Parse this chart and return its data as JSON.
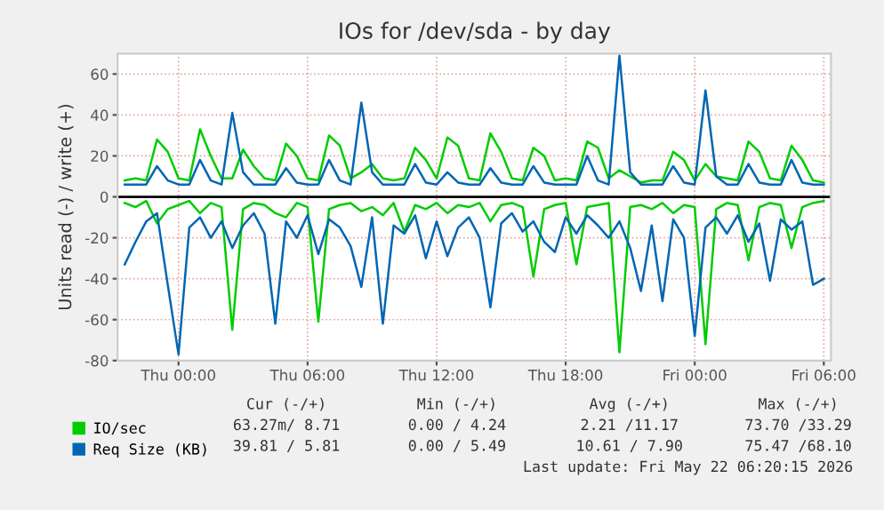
{
  "chart_data": {
    "type": "line",
    "title": "IOs for /dev/sda - by day",
    "ylabel": "Units read (-) / write (+)",
    "x": [
      "2026-05-20T21:30",
      "2026-05-20T22:00",
      "2026-05-20T22:30",
      "2026-05-20T23:00",
      "2026-05-20T23:30",
      "2026-05-21T00:00",
      "2026-05-21T00:30",
      "2026-05-21T01:00",
      "2026-05-21T01:30",
      "2026-05-21T02:00",
      "2026-05-21T02:30",
      "2026-05-21T03:00",
      "2026-05-21T03:30",
      "2026-05-21T04:00",
      "2026-05-21T04:30",
      "2026-05-21T05:00",
      "2026-05-21T05:30",
      "2026-05-21T06:00",
      "2026-05-21T06:30",
      "2026-05-21T07:00",
      "2026-05-21T07:30",
      "2026-05-21T08:00",
      "2026-05-21T08:30",
      "2026-05-21T09:00",
      "2026-05-21T09:30",
      "2026-05-21T10:00",
      "2026-05-21T10:30",
      "2026-05-21T11:00",
      "2026-05-21T11:30",
      "2026-05-21T12:00",
      "2026-05-21T12:30",
      "2026-05-21T13:00",
      "2026-05-21T13:30",
      "2026-05-21T14:00",
      "2026-05-21T14:30",
      "2026-05-21T15:00",
      "2026-05-21T15:30",
      "2026-05-21T16:00",
      "2026-05-21T16:30",
      "2026-05-21T17:00",
      "2026-05-21T17:30",
      "2026-05-21T18:00",
      "2026-05-21T18:30",
      "2026-05-21T19:00",
      "2026-05-21T19:30",
      "2026-05-21T20:00",
      "2026-05-21T20:30",
      "2026-05-21T21:00",
      "2026-05-21T21:30",
      "2026-05-21T22:00",
      "2026-05-21T22:30",
      "2026-05-21T23:00",
      "2026-05-21T23:30",
      "2026-05-22T00:00",
      "2026-05-22T00:30",
      "2026-05-22T01:00",
      "2026-05-22T01:30",
      "2026-05-22T02:00",
      "2026-05-22T02:30",
      "2026-05-22T03:00",
      "2026-05-22T03:30",
      "2026-05-22T04:00",
      "2026-05-22T04:30",
      "2026-05-22T05:00",
      "2026-05-22T05:30",
      "2026-05-22T06:00"
    ],
    "series": [
      {
        "name": "IO/sec",
        "color": "#00cc00",
        "values": [
          8,
          9,
          8,
          28,
          22,
          9,
          8,
          33,
          20,
          9,
          9,
          23,
          15,
          9,
          8,
          26,
          20,
          9,
          8,
          30,
          25,
          9,
          12,
          16,
          9,
          8,
          9,
          24,
          18,
          9,
          29,
          25,
          9,
          8,
          31,
          22,
          9,
          8,
          24,
          20,
          8,
          9,
          8,
          27,
          24,
          9,
          13,
          10,
          7,
          8,
          8,
          22,
          18,
          8,
          16,
          10,
          9,
          8,
          27,
          22,
          9,
          8,
          25,
          18,
          8,
          7
        ]
      },
      {
        "color": "#00cc00",
        "values": [
          -3,
          -5,
          -2,
          -13,
          -6,
          -4,
          -2,
          -8,
          -3,
          -5,
          -65,
          -6,
          -3,
          -4,
          -8,
          -10,
          -3,
          -5,
          -61,
          -6,
          -4,
          -3,
          -7,
          -5,
          -9,
          -3,
          -17,
          -4,
          -6,
          -3,
          -8,
          -4,
          -5,
          -3,
          -12,
          -4,
          -3,
          -5,
          -39,
          -6,
          -4,
          -3,
          -33,
          -5,
          -4,
          -3,
          -76,
          -5,
          -4,
          -6,
          -3,
          -8,
          -4,
          -5,
          -72,
          -6,
          -3,
          -4,
          -31,
          -5,
          -3,
          -4,
          -25,
          -5,
          -3,
          -2
        ]
      },
      {
        "name": "Req Size (KB)",
        "color": "#0066b3",
        "values": [
          6,
          6,
          6,
          15,
          8,
          6,
          6,
          18,
          8,
          6,
          41,
          12,
          6,
          6,
          6,
          14,
          7,
          6,
          6,
          18,
          8,
          6,
          46,
          12,
          6,
          6,
          6,
          16,
          7,
          6,
          12,
          7,
          6,
          6,
          14,
          7,
          6,
          6,
          15,
          7,
          6,
          6,
          6,
          20,
          8,
          6,
          69,
          12,
          6,
          6,
          6,
          15,
          7,
          6,
          52,
          10,
          6,
          6,
          16,
          7,
          6,
          6,
          18,
          7,
          6,
          6
        ]
      },
      {
        "color": "#0066b3",
        "values": [
          -33,
          -22,
          -12,
          -8,
          -43,
          -77,
          -15,
          -10,
          -20,
          -12,
          -25,
          -14,
          -8,
          -18,
          -62,
          -12,
          -20,
          -9,
          -28,
          -11,
          -15,
          -24,
          -44,
          -10,
          -62,
          -14,
          -18,
          -9,
          -30,
          -12,
          -29,
          -15,
          -10,
          -20,
          -54,
          -13,
          -8,
          -17,
          -12,
          -22,
          -27,
          -10,
          -18,
          -9,
          -14,
          -20,
          -12,
          -25,
          -46,
          -14,
          -51,
          -11,
          -20,
          -68,
          -15,
          -10,
          -18,
          -9,
          -22,
          -13,
          -41,
          -11,
          -16,
          -12,
          -43,
          -40
        ]
      }
    ],
    "xlim": [
      "2026-05-20T21:10",
      "2026-05-22T06:20"
    ],
    "xticks": [
      {
        "value": "2026-05-21T00:00",
        "label": "Thu 00:00"
      },
      {
        "value": "2026-05-21T06:00",
        "label": "Thu 06:00"
      },
      {
        "value": "2026-05-21T12:00",
        "label": "Thu 12:00"
      },
      {
        "value": "2026-05-21T18:00",
        "label": "Thu 18:00"
      },
      {
        "value": "2026-05-22T00:00",
        "label": "Fri 00:00"
      },
      {
        "value": "2026-05-22T06:00",
        "label": "Fri 06:00"
      }
    ],
    "ylim": [
      -80,
      70
    ],
    "yticks": [
      -80,
      -60,
      -40,
      -20,
      0,
      20,
      40,
      60
    ],
    "ref_lines": [
      {
        "axis": "y",
        "value": 0,
        "color": "#000000"
      }
    ],
    "grid": true,
    "legend": "bottom",
    "annotations": [
      "Cur (-/+)",
      "Min (-/+)",
      "Avg (-/+)",
      "Max (-/+)",
      "63.27m/ 8.71",
      "0.00 / 4.24",
      "2.21 /11.17",
      "73.70 /33.29",
      "39.81 / 5.81",
      "0.00 / 5.49",
      "10.61 / 7.90",
      "75.47 /68.10",
      "Last update: Fri May 22 06:20:15 2026"
    ]
  }
}
